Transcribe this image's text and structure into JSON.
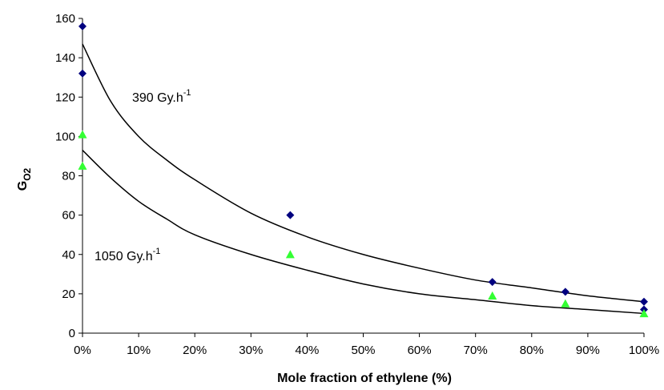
{
  "chart_data": {
    "type": "scatter",
    "title": "",
    "xlabel": "Mole fraction of ethylene (%)",
    "ylabel": {
      "main": "G",
      "subscript": "O2"
    },
    "xlim": [
      0,
      100
    ],
    "ylim": [
      0,
      160
    ],
    "x_ticks": [
      0,
      10,
      20,
      30,
      40,
      50,
      60,
      70,
      80,
      90,
      100
    ],
    "x_tick_labels": [
      "0%",
      "10%",
      "20%",
      "30%",
      "40%",
      "50%",
      "60%",
      "70%",
      "80%",
      "90%",
      "100%"
    ],
    "y_ticks": [
      0,
      20,
      40,
      60,
      80,
      100,
      120,
      140,
      160
    ],
    "y_tick_labels": [
      "0",
      "20",
      "40",
      "60",
      "80",
      "100",
      "120",
      "140",
      "160"
    ],
    "grid": false,
    "legend": "none",
    "series": [
      {
        "annotation": {
          "text": "390 Gy.h",
          "superscript": "-1"
        },
        "marker": "diamond",
        "color": "#00007f",
        "points": [
          [
            0,
            156
          ],
          [
            0,
            132
          ],
          [
            37,
            60
          ],
          [
            73,
            26
          ],
          [
            86,
            21
          ],
          [
            100,
            16
          ],
          [
            100,
            12
          ]
        ],
        "fit_curve": [
          [
            0,
            147
          ],
          [
            5,
            118
          ],
          [
            10,
            100
          ],
          [
            15,
            88
          ],
          [
            20,
            78
          ],
          [
            30,
            61
          ],
          [
            40,
            49
          ],
          [
            50,
            40
          ],
          [
            60,
            33
          ],
          [
            70,
            27
          ],
          [
            80,
            23
          ],
          [
            90,
            19
          ],
          [
            100,
            16
          ]
        ]
      },
      {
        "annotation": {
          "text": "1050 Gy.h",
          "superscript": "-1"
        },
        "marker": "triangle",
        "color": "#33ff33",
        "points": [
          [
            0,
            101
          ],
          [
            0,
            85
          ],
          [
            37,
            40
          ],
          [
            73,
            19
          ],
          [
            86,
            15
          ],
          [
            100,
            10
          ]
        ],
        "fit_curve": [
          [
            0,
            93
          ],
          [
            5,
            79
          ],
          [
            10,
            67
          ],
          [
            15,
            58
          ],
          [
            20,
            50
          ],
          [
            30,
            40
          ],
          [
            40,
            32
          ],
          [
            50,
            25
          ],
          [
            60,
            20
          ],
          [
            70,
            17
          ],
          [
            80,
            14
          ],
          [
            90,
            12
          ],
          [
            100,
            10
          ]
        ]
      }
    ]
  }
}
